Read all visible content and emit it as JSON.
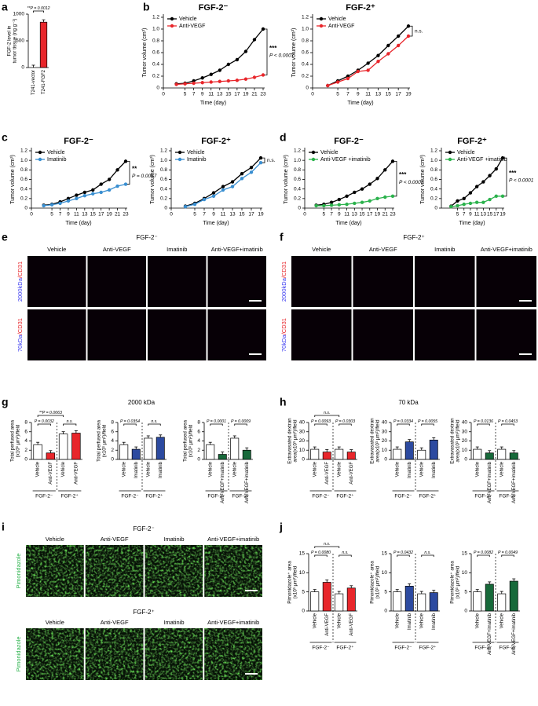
{
  "a": {
    "letter": "a",
    "chart": {
      "type": "bar",
      "ylabel": [
        "FGF-2 level in",
        "tumor tissue (ng g⁻¹)"
      ],
      "categories": [
        "T241-vector",
        "T241-FGF2"
      ],
      "values": [
        0,
        850
      ],
      "colors": [
        "#ffffff",
        "#e8262b"
      ],
      "ylim": [
        0,
        1000
      ],
      "yticks": [
        0,
        500,
        1000
      ],
      "annotations": [
        "**P = 0.0012"
      ]
    }
  },
  "b": {
    "letter": "b",
    "charts": [
      {
        "type": "line",
        "title": "FGF-2⁻",
        "xlabel": "Time (day)",
        "ylabel": "Tumor volume (cm³)",
        "x": [
          3,
          5,
          7,
          9,
          11,
          13,
          15,
          17,
          19,
          21,
          23
        ],
        "xlim": [
          0,
          23
        ],
        "xticks": [
          0,
          5,
          7,
          9,
          11,
          13,
          15,
          17,
          19,
          21,
          23
        ],
        "ylim": [
          0,
          1.2
        ],
        "yticks": [
          0,
          0.2,
          0.4,
          0.6,
          0.8,
          {
            "value": 1,
            "label": "1.0"
          },
          1.2
        ],
        "series": [
          {
            "name": "Vehicle",
            "color": "#000000",
            "values": [
              0.07,
              0.08,
              0.12,
              0.17,
              0.23,
              0.3,
              0.4,
              0.48,
              0.62,
              0.82,
              1.0
            ]
          },
          {
            "name": "Anti-VEGF",
            "color": "#e8262b",
            "values": [
              0.06,
              0.07,
              0.08,
              0.09,
              0.1,
              0.11,
              0.12,
              0.13,
              0.15,
              0.18,
              0.22
            ]
          }
        ],
        "annotations": [
          "***",
          "P < 0.0001"
        ]
      },
      {
        "type": "line",
        "title": "FGF-2⁺",
        "xlabel": "Time (day)",
        "ylabel": "Tumor volume (cm³)",
        "x": [
          3,
          5,
          7,
          9,
          11,
          13,
          15,
          17,
          19
        ],
        "xlim": [
          0,
          19
        ],
        "xticks": [
          0,
          5,
          7,
          9,
          11,
          13,
          15,
          17,
          19
        ],
        "ylim": [
          0,
          1.2
        ],
        "yticks": [
          0,
          0.2,
          0.4,
          0.6,
          0.8,
          {
            "value": 1,
            "label": "1.0"
          },
          1.2
        ],
        "series": [
          {
            "name": "Vehicle",
            "color": "#000000",
            "values": [
              0.04,
              0.12,
              0.2,
              0.3,
              0.42,
              0.55,
              0.72,
              0.88,
              1.05
            ]
          },
          {
            "name": "Anti-VEGF",
            "color": "#e8262b",
            "values": [
              0.04,
              0.1,
              0.16,
              0.28,
              0.3,
              0.45,
              0.58,
              0.72,
              0.88
            ]
          }
        ],
        "annotations": [
          "n.s."
        ]
      }
    ]
  },
  "c": {
    "letter": "c",
    "charts": [
      {
        "type": "line",
        "title": "FGF-2⁻",
        "xlabel": "Time (day)",
        "ylabel": "Tumor volume (cm³)",
        "x": [
          3,
          5,
          7,
          9,
          11,
          13,
          15,
          17,
          19,
          21,
          23
        ],
        "xlim": [
          0,
          23
        ],
        "xticks": [
          0,
          5,
          7,
          9,
          11,
          13,
          15,
          17,
          19,
          21,
          23
        ],
        "ylim": [
          0,
          1.2
        ],
        "yticks": [
          0,
          0.2,
          0.4,
          0.6,
          0.8,
          {
            "value": 1,
            "label": "1.0"
          },
          1.2
        ],
        "series": [
          {
            "name": "Vehicle",
            "color": "#000000",
            "values": [
              0.06,
              0.08,
              0.13,
              0.2,
              0.27,
              0.33,
              0.38,
              0.5,
              0.6,
              0.8,
              0.98
            ]
          },
          {
            "name": "Imatinib",
            "color": "#3a8fd1",
            "values": [
              0.05,
              0.07,
              0.1,
              0.15,
              0.2,
              0.26,
              0.3,
              0.33,
              0.38,
              0.46,
              0.5
            ]
          }
        ],
        "annotations": [
          "**",
          "P = 0.0057"
        ]
      },
      {
        "type": "line",
        "title": "FGF-2⁺",
        "xlabel": "Time (day)",
        "ylabel": "Tumor volume (cm³)",
        "x": [
          3,
          5,
          7,
          9,
          11,
          13,
          15,
          17,
          19
        ],
        "xlim": [
          0,
          19
        ],
        "xticks": [
          0,
          5,
          7,
          9,
          11,
          13,
          15,
          17,
          19
        ],
        "ylim": [
          0,
          1.2
        ],
        "yticks": [
          0,
          0.2,
          0.4,
          0.6,
          0.8,
          {
            "value": 1,
            "label": "1.0"
          },
          1.2
        ],
        "series": [
          {
            "name": "Vehicle",
            "color": "#000000",
            "values": [
              0.04,
              0.1,
              0.2,
              0.32,
              0.45,
              0.55,
              0.72,
              0.85,
              1.05
            ]
          },
          {
            "name": "Imatinib",
            "color": "#3a8fd1",
            "values": [
              0.03,
              0.08,
              0.18,
              0.25,
              0.38,
              0.45,
              0.62,
              0.75,
              0.95
            ]
          }
        ],
        "annotations": [
          "n.s."
        ]
      }
    ]
  },
  "d": {
    "letter": "d",
    "charts": [
      {
        "type": "line",
        "title": "FGF-2⁻",
        "xlabel": "Time (day)",
        "ylabel": "Tumor volume (cm³)",
        "x": [
          3,
          5,
          7,
          9,
          11,
          13,
          15,
          17,
          19,
          21,
          23
        ],
        "xlim": [
          0,
          23
        ],
        "xticks": [
          0,
          5,
          7,
          9,
          11,
          13,
          15,
          17,
          19,
          21,
          23
        ],
        "ylim": [
          0,
          1.2
        ],
        "yticks": [
          0,
          0.2,
          0.4,
          0.6,
          0.8,
          {
            "value": 1,
            "label": "1.0"
          },
          1.2
        ],
        "series": [
          {
            "name": "Vehicle",
            "color": "#000000",
            "values": [
              0.06,
              0.08,
              0.12,
              0.18,
              0.25,
              0.33,
              0.4,
              0.5,
              0.62,
              0.8,
              0.98
            ]
          },
          {
            "name": "Anti-VEGF +imatinib",
            "color": "#2bb24c",
            "values": [
              0.05,
              0.05,
              0.06,
              0.07,
              0.08,
              0.1,
              0.12,
              0.15,
              0.2,
              0.23,
              0.25
            ]
          }
        ],
        "annotations": [
          "***",
          "P < 0.0001"
        ]
      },
      {
        "type": "line",
        "title": "FGF-2⁺",
        "xlabel": "Time (day)",
        "ylabel": "Tumor volume (cm³)",
        "x": [
          3,
          5,
          7,
          9,
          11,
          13,
          15,
          17,
          19
        ],
        "xlim": [
          0,
          19
        ],
        "xticks": [
          5,
          7,
          9,
          11,
          13,
          15,
          17,
          19
        ],
        "ylim": [
          0,
          1.2
        ],
        "yticks": [
          0,
          0.2,
          0.4,
          0.6,
          0.8,
          {
            "value": 1,
            "label": "1.0"
          },
          1.2
        ],
        "series": [
          {
            "name": "Vehicle",
            "color": "#000000",
            "values": [
              0.04,
              0.15,
              0.2,
              0.32,
              0.45,
              0.55,
              0.68,
              0.82,
              1.05
            ]
          },
          {
            "name": "Anti-VEGF +imatinib",
            "color": "#2bb24c",
            "values": [
              0.03,
              0.05,
              0.08,
              0.1,
              0.12,
              0.12,
              0.18,
              0.25,
              0.25
            ]
          }
        ],
        "annotations": [
          "***",
          "P < 0.0001"
        ]
      }
    ]
  },
  "e": {
    "letter": "e",
    "title": "FGF-2⁻",
    "columns": [
      "Vehicle",
      "Anti-VEGF",
      "Imatinib",
      "Anti-VEGF+imatinib"
    ],
    "rows": [
      {
        "dextran": "2000kDa",
        "stain": "/CD31"
      },
      {
        "dextran": "70kDa",
        "stain": "/CD31"
      }
    ]
  },
  "f": {
    "letter": "f",
    "title": "FGF-2⁺",
    "columns": [
      "Vehicle",
      "Anti-VEGF",
      "Imatinib",
      "Anti-VEGF+imatinib"
    ],
    "rows": [
      {
        "dextran": "2000kDa",
        "stain": "/CD31"
      },
      {
        "dextran": "70kDa",
        "stain": "/CD31"
      }
    ]
  },
  "g": {
    "letter": "g",
    "title": "2000 kDa",
    "charts": [
      {
        "type": "bar",
        "ylabel": [
          "Total perfused area",
          "(x10³ µm²)/field"
        ],
        "categories": [
          "Vehicle",
          "Anti-VEGF",
          "Vehicle",
          "Anti-VEGF"
        ],
        "values": [
          3.2,
          1.4,
          5.5,
          5.7
        ],
        "colors": [
          "#ffffff",
          "#e8262b",
          "#ffffff",
          "#e8262b"
        ],
        "ylim": [
          0,
          8
        ],
        "yticks": [
          0,
          2,
          4,
          6,
          8
        ],
        "groups": [
          "FGF-2⁻",
          "FGF-2⁺"
        ],
        "annotations": [
          "P = 0.0032",
          "n.s.",
          "**P = 0.0063"
        ]
      },
      {
        "type": "bar",
        "ylabel": [
          "Total perfused area",
          "(x10³ µm²)/field"
        ],
        "categories": [
          "Vehicle",
          "Imatinib",
          "Vehicle",
          "Imatinib"
        ],
        "values": [
          3.2,
          2.2,
          4.6,
          4.8
        ],
        "colors": [
          "#ffffff",
          "#2c4aa0",
          "#ffffff",
          "#2c4aa0"
        ],
        "ylim": [
          0,
          8
        ],
        "yticks": [
          0,
          2,
          4,
          6,
          8
        ],
        "groups": [
          "FGF-2⁻",
          "FGF-2⁺"
        ],
        "annotations": [
          "P = 0.0354",
          "n.s."
        ]
      },
      {
        "type": "bar",
        "ylabel": [
          "Total perfused area",
          "(x10³ µm²)/field"
        ],
        "categories": [
          "Vehicle",
          "Anti-VEGF+imatinib",
          "Vehicle",
          "Anti-VEGF+imatinib"
        ],
        "values": [
          3.2,
          1.1,
          4.6,
          2.0
        ],
        "colors": [
          "#ffffff",
          "#17693a",
          "#ffffff",
          "#17693a"
        ],
        "ylim": [
          0,
          8
        ],
        "yticks": [
          0,
          2,
          4,
          6,
          8
        ],
        "groups": [
          "FGF-2⁻",
          "FGF-2⁺"
        ],
        "annotations": [
          "P = 0.0001",
          "P = 0.0009"
        ]
      }
    ]
  },
  "h": {
    "letter": "h",
    "title": "70 kDa",
    "charts": [
      {
        "type": "bar",
        "ylabel": [
          "Extravasated dextran",
          "area(x10³ µm²)/field"
        ],
        "categories": [
          "Vehicle",
          "Anti-VEGF",
          "Vehicle",
          "Anti-VEGF"
        ],
        "values": [
          11,
          8,
          11,
          8
        ],
        "colors": [
          "#ffffff",
          "#e8262b",
          "#ffffff",
          "#e8262b"
        ],
        "ylim": [
          0,
          40
        ],
        "yticks": [
          0,
          10,
          20,
          30,
          40
        ],
        "groups": [
          "FGF-2⁻",
          "FGF-2⁺"
        ],
        "annotations": [
          "P = 0.0093",
          "P = 0.0303",
          "n.s."
        ]
      },
      {
        "type": "bar",
        "ylabel": [
          "Extravasated dextran",
          "area(x10³ µm²)/field"
        ],
        "categories": [
          "Vehicle",
          "Imatinib",
          "Vehicle",
          "Imatinib"
        ],
        "values": [
          11,
          19,
          10,
          21
        ],
        "colors": [
          "#ffffff",
          "#2c4aa0",
          "#ffffff",
          "#2c4aa0"
        ],
        "ylim": [
          0,
          40
        ],
        "yticks": [
          0,
          10,
          20,
          30,
          40
        ],
        "groups": [
          "FGF-2⁻",
          "FGF-2⁺"
        ],
        "annotations": [
          "P = 0.0334",
          "P = 0.0055"
        ]
      },
      {
        "type": "bar",
        "ylabel": [
          "Extravasated dextran",
          "area(x10³ µm²)/field"
        ],
        "categories": [
          "Vehicle",
          "Anti-VEGF+imatinib",
          "Vehicle",
          "Anti-VEGF+imatinib"
        ],
        "values": [
          11,
          7,
          11,
          7
        ],
        "colors": [
          "#ffffff",
          "#17693a",
          "#ffffff",
          "#17693a"
        ],
        "ylim": [
          0,
          40
        ],
        "yticks": [
          0,
          10,
          20,
          30,
          40
        ],
        "groups": [
          "FGF-2⁻",
          "FGF-2⁺"
        ],
        "annotations": [
          "P = 0.0136",
          "P = 0.0453"
        ]
      }
    ]
  },
  "i": {
    "letter": "i",
    "blocks": [
      {
        "title": "FGF-2⁻",
        "columns": [
          "Vehicle",
          "Anti-VEGF",
          "Imatinib",
          "Anti-VEGF+imatinib"
        ],
        "row_label": "Pimonidazole"
      },
      {
        "title": "FGF-2⁺",
        "columns": [
          "Vehicle",
          "Anti-VEGF",
          "Imatinib",
          "Anti-VEGF+imatinib"
        ],
        "row_label": "Pimonidazole"
      }
    ]
  },
  "j": {
    "letter": "j",
    "charts": [
      {
        "type": "bar",
        "ylabel": [
          "Pimonidazole⁺ area",
          "(x10³ µm²)/field"
        ],
        "categories": [
          "Vehicle",
          "Anti-VEGF",
          "Vehicle",
          "Anti-VEGF"
        ],
        "values": [
          5,
          7.5,
          4.5,
          6
        ],
        "colors": [
          "#ffffff",
          "#e8262b",
          "#ffffff",
          "#e8262b"
        ],
        "ylim": [
          0,
          15
        ],
        "yticks": [
          0,
          5,
          10,
          15
        ],
        "groups": [
          "FGF-2⁻",
          "FGF-2⁺"
        ],
        "annotations": [
          "P = 0.0080",
          "n.s.",
          "n.s."
        ]
      },
      {
        "type": "bar",
        "ylabel": [
          "Pimonidazole⁺ area",
          "(x10³ µm²)/field"
        ],
        "categories": [
          "Vehicle",
          "Imatinib",
          "Vehicle",
          "Imatinib"
        ],
        "values": [
          5,
          6.5,
          4.5,
          4.8
        ],
        "colors": [
          "#ffffff",
          "#2c4aa0",
          "#ffffff",
          "#2c4aa0"
        ],
        "ylim": [
          0,
          15
        ],
        "yticks": [
          0,
          5,
          10,
          15
        ],
        "groups": [
          "FGF-2⁻",
          "FGF-2⁺"
        ],
        "annotations": [
          "P = 0.0432",
          "n.s."
        ]
      },
      {
        "type": "bar",
        "ylabel": [
          "Pimonidazole⁺ area",
          "(x10³ µm²)/field"
        ],
        "categories": [
          "Vehicle",
          "Anti-VEGF+imatinib",
          "Vehicle",
          "Anti-VEGF+imatinib"
        ],
        "values": [
          5,
          7,
          4.5,
          7.8
        ],
        "colors": [
          "#ffffff",
          "#17693a",
          "#ffffff",
          "#17693a"
        ],
        "ylim": [
          0,
          15
        ],
        "yticks": [
          0,
          5,
          10,
          15
        ],
        "groups": [
          "FGF-2⁻",
          "FGF-2⁺"
        ],
        "annotations": [
          "P = 0.0082",
          "P = 0.0049"
        ]
      }
    ]
  }
}
